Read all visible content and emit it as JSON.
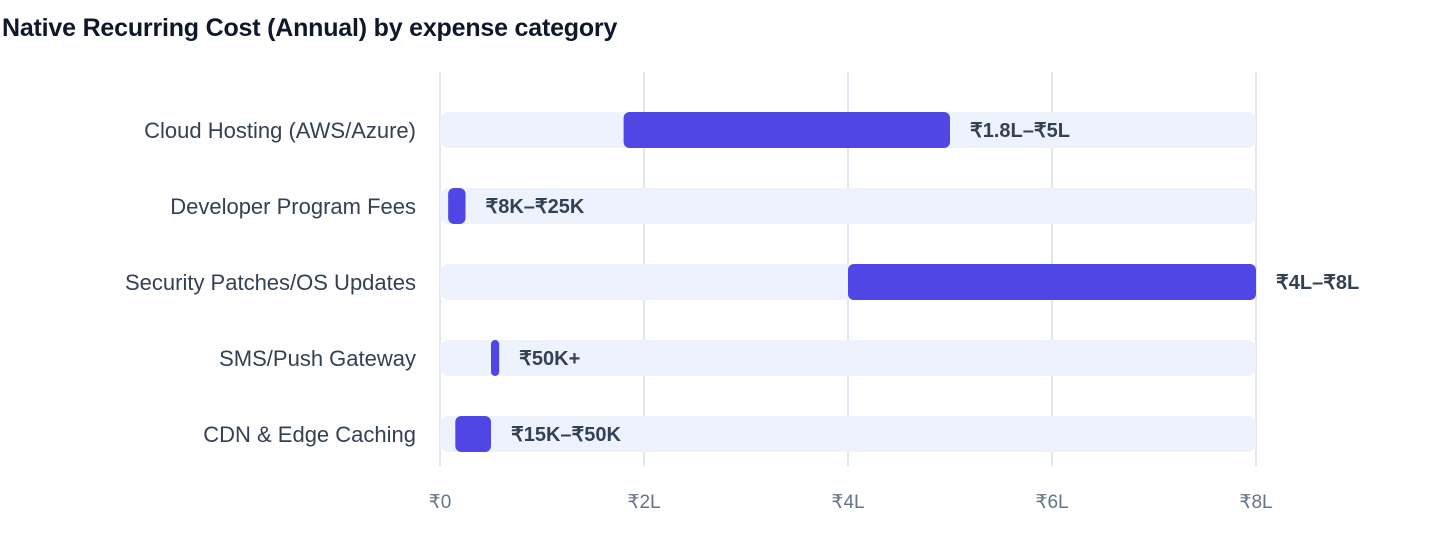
{
  "chart_data": {
    "type": "bar",
    "orientation": "horizontal-range",
    "title": "Native Recurring Cost (Annual) by expense category",
    "xlabel": "",
    "ylabel": "",
    "xlim": [
      0,
      800000
    ],
    "grid": true,
    "x_ticks": [
      {
        "value": 0,
        "label": "₹0"
      },
      {
        "value": 200000,
        "label": "₹2L"
      },
      {
        "value": 400000,
        "label": "₹4L"
      },
      {
        "value": 600000,
        "label": "₹6L"
      },
      {
        "value": 800000,
        "label": "₹8L"
      }
    ],
    "categories": [
      "Cloud Hosting (AWS/Azure)",
      "Developer Program Fees",
      "Security Patches/OS Updates",
      "SMS/Push Gateway",
      "CDN & Edge Caching"
    ],
    "ranges": [
      [
        180000,
        500000
      ],
      [
        8000,
        25000
      ],
      [
        400000,
        800000
      ],
      [
        50000,
        58000
      ],
      [
        15000,
        50000
      ]
    ],
    "labels": [
      "₹1.8L–₹5L",
      "₹8K–₹25K",
      "₹4L–₹8L",
      "₹50K+",
      "₹15K–₹50K"
    ],
    "colors": {
      "bar": "#4f46e5",
      "track": "#eef2fc",
      "grid": "#e2e8f0"
    }
  }
}
